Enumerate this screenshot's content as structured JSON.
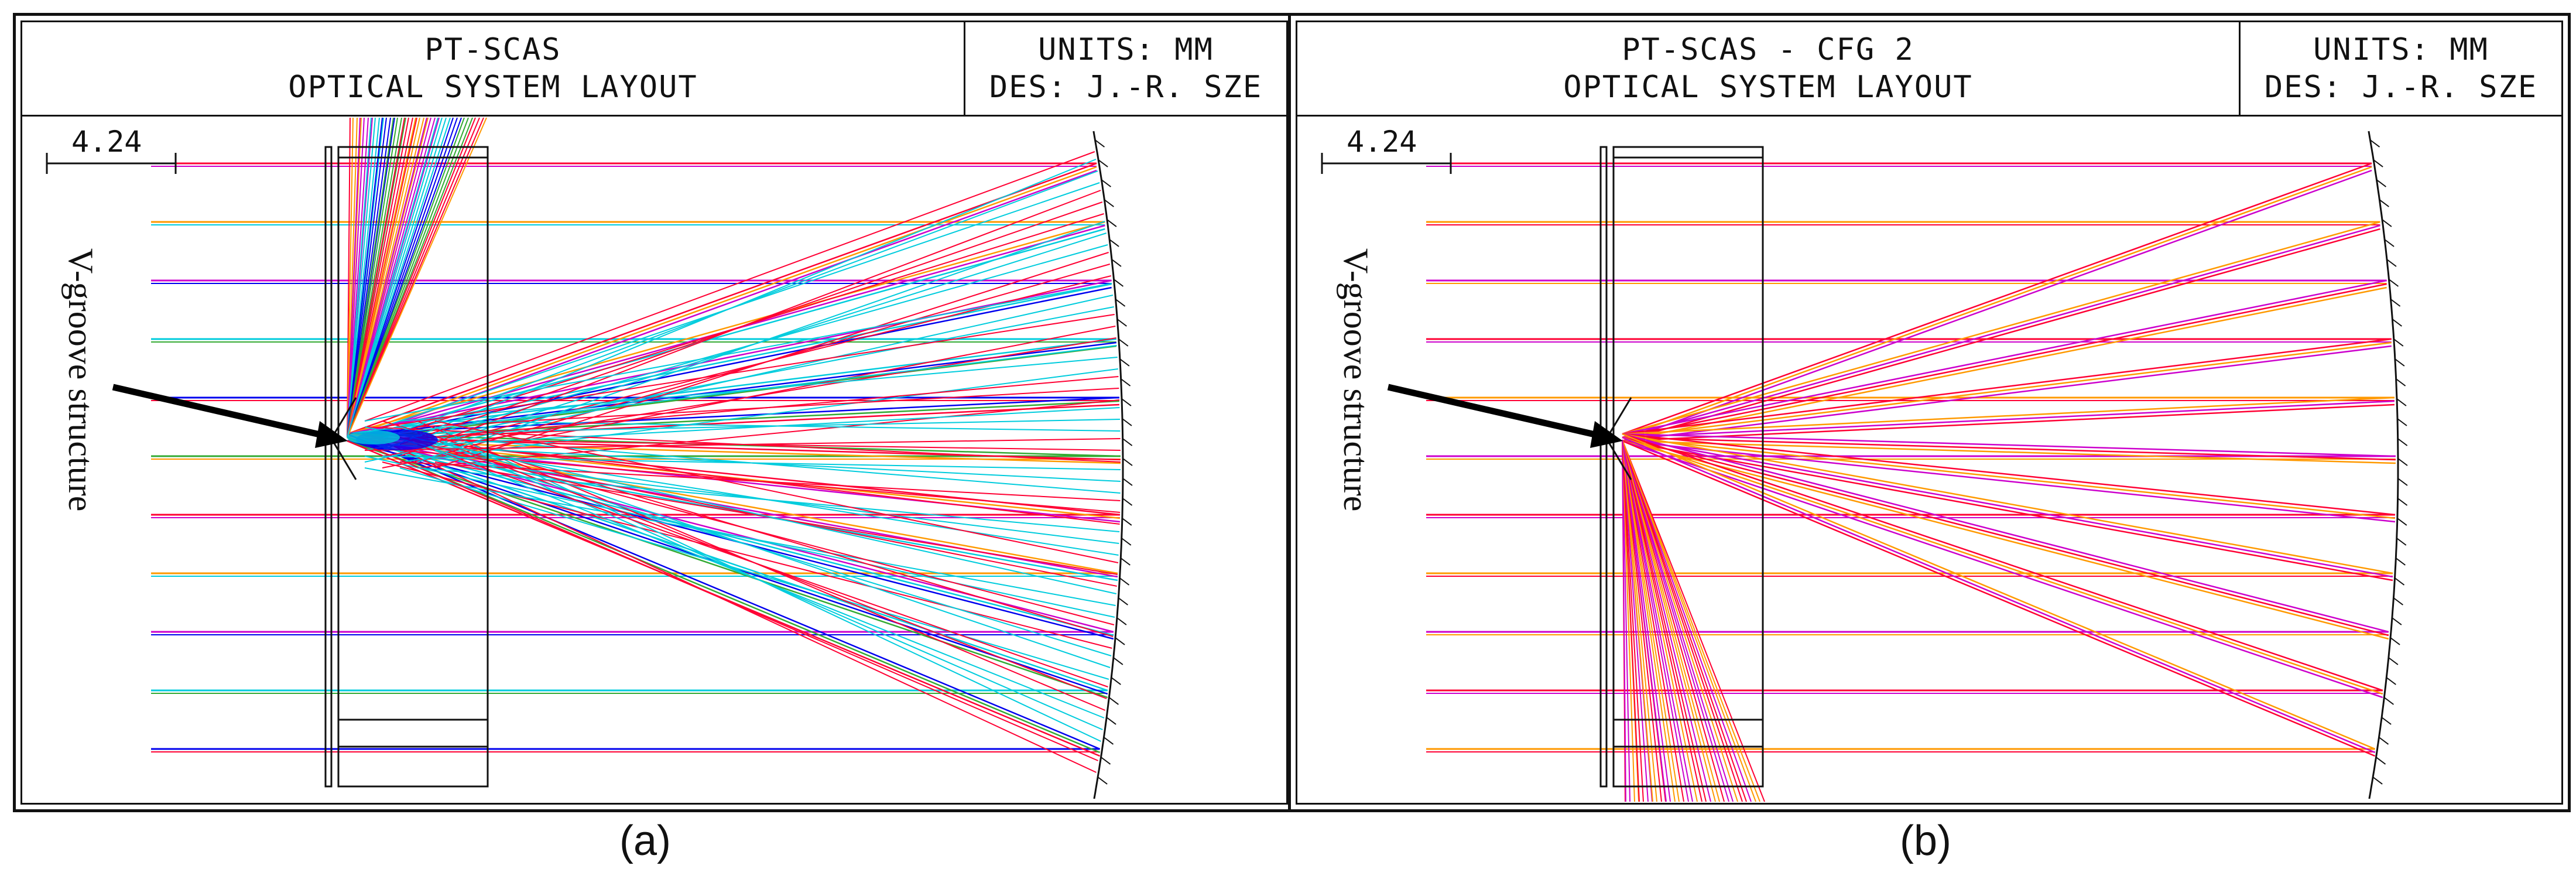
{
  "panels": [
    {
      "title_line1": "PT-SCAS",
      "title_line2": "OPTICAL SYSTEM LAYOUT",
      "units": "UNITS: MM",
      "designer": "DES: J.-R. SZE",
      "scale_label": "4.24",
      "annotation": "V-groove structure",
      "caption": "(a)",
      "ray_pattern": "scattered",
      "ray_colors": [
        "#ff0033",
        "#ff9900",
        "#cc00cc",
        "#00ccdd",
        "#0000ee",
        "#33aa33"
      ]
    },
    {
      "title_line1": "PT-SCAS - CFG 2",
      "title_line2": "OPTICAL SYSTEM LAYOUT",
      "units": "UNITS: MM",
      "designer": "DES: J.-R. SZE",
      "scale_label": "4.24",
      "annotation": "V-groove structure",
      "caption": "(b)",
      "ray_pattern": "focused",
      "ray_colors": [
        "#ff0033",
        "#ff9900",
        "#cc00cc"
      ]
    }
  ]
}
